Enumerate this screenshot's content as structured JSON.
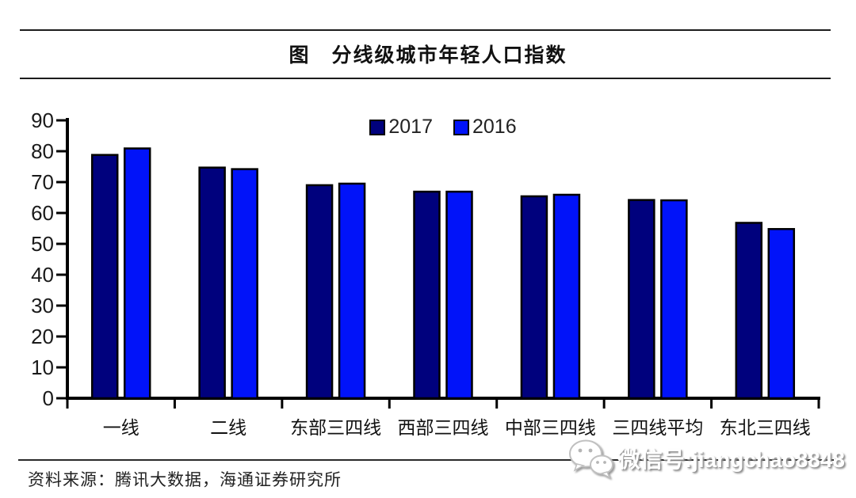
{
  "figure": {
    "title": "图　分线级城市年轻人口指数",
    "source": "资料来源：腾讯大数据，海通证券研究所"
  },
  "watermark": {
    "icon": "wechat-icon",
    "text": "微信号:jiangchao8848"
  },
  "chart_data": {
    "type": "bar",
    "title": "图　分线级城市年轻人口指数",
    "categories": [
      "一线",
      "二线",
      "东部三四线",
      "西部三四线",
      "中部三四线",
      "三四线平均",
      "东北三四线"
    ],
    "series": [
      {
        "name": "2017",
        "color": "#00017d",
        "values": [
          78.8,
          74.7,
          69.0,
          66.9,
          65.4,
          64.2,
          56.8
        ]
      },
      {
        "name": "2016",
        "color": "#0113f9",
        "values": [
          80.9,
          74.2,
          69.5,
          66.9,
          65.9,
          64.1,
          54.8
        ]
      }
    ],
    "xlabel": "",
    "ylabel": "",
    "ylim": [
      0,
      90
    ],
    "yticks": [
      0,
      10,
      20,
      30,
      40,
      50,
      60,
      70,
      80,
      90
    ],
    "grid": false,
    "legend_position": "top-center",
    "bar_outline_color": "#000000",
    "axis_color": "#000000"
  }
}
